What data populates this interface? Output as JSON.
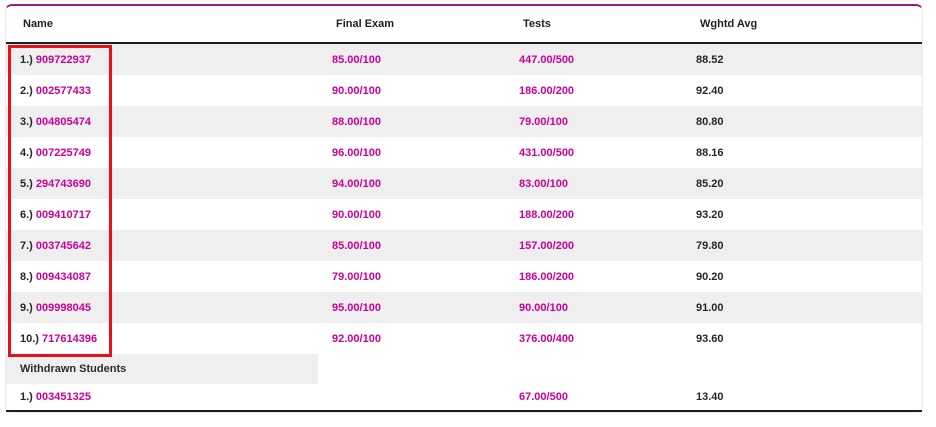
{
  "colors": {
    "accent_top_border": "#9b1b7e",
    "link": "#cc0099",
    "stripe": "#efefef",
    "highlight_box": "#e8111a",
    "header_text": "#202020",
    "rule_line": "#1d1d1d"
  },
  "table": {
    "columns": [
      {
        "label": "Name"
      },
      {
        "label": "Final Exam"
      },
      {
        "label": "Tests"
      },
      {
        "label": "Wghtd Avg"
      }
    ],
    "students": [
      {
        "rank": "1.)",
        "id": "909722937",
        "final_exam": "85.00/100",
        "tests": "447.00/500",
        "wghtd_avg": "88.52"
      },
      {
        "rank": "2.)",
        "id": "002577433",
        "final_exam": "90.00/100",
        "tests": "186.00/200",
        "wghtd_avg": "92.40"
      },
      {
        "rank": "3.)",
        "id": "004805474",
        "final_exam": "88.00/100",
        "tests": "79.00/100",
        "wghtd_avg": "80.80"
      },
      {
        "rank": "4.)",
        "id": "007225749",
        "final_exam": "96.00/100",
        "tests": "431.00/500",
        "wghtd_avg": "88.16"
      },
      {
        "rank": "5.)",
        "id": "294743690",
        "final_exam": "94.00/100",
        "tests": "83.00/100",
        "wghtd_avg": "85.20"
      },
      {
        "rank": "6.)",
        "id": "009410717",
        "final_exam": "90.00/100",
        "tests": "188.00/200",
        "wghtd_avg": "93.20"
      },
      {
        "rank": "7.)",
        "id": "003745642",
        "final_exam": "85.00/100",
        "tests": "157.00/200",
        "wghtd_avg": "79.80"
      },
      {
        "rank": "8.)",
        "id": "009434087",
        "final_exam": "79.00/100",
        "tests": "186.00/200",
        "wghtd_avg": "90.20"
      },
      {
        "rank": "9.)",
        "id": "009998045",
        "final_exam": "95.00/100",
        "tests": "90.00/100",
        "wghtd_avg": "91.00"
      },
      {
        "rank": "10.)",
        "id": "717614396",
        "final_exam": "92.00/100",
        "tests": "376.00/400",
        "wghtd_avg": "93.60"
      }
    ],
    "withdrawn_section_label": "Withdrawn Students",
    "withdrawn_students": [
      {
        "rank": "1.)",
        "id": "003451325",
        "final_exam": "",
        "tests": "67.00/500",
        "wghtd_avg": "13.40"
      }
    ]
  },
  "annotation": {
    "description": "red box highlighting the Name column of rows 1-10"
  }
}
